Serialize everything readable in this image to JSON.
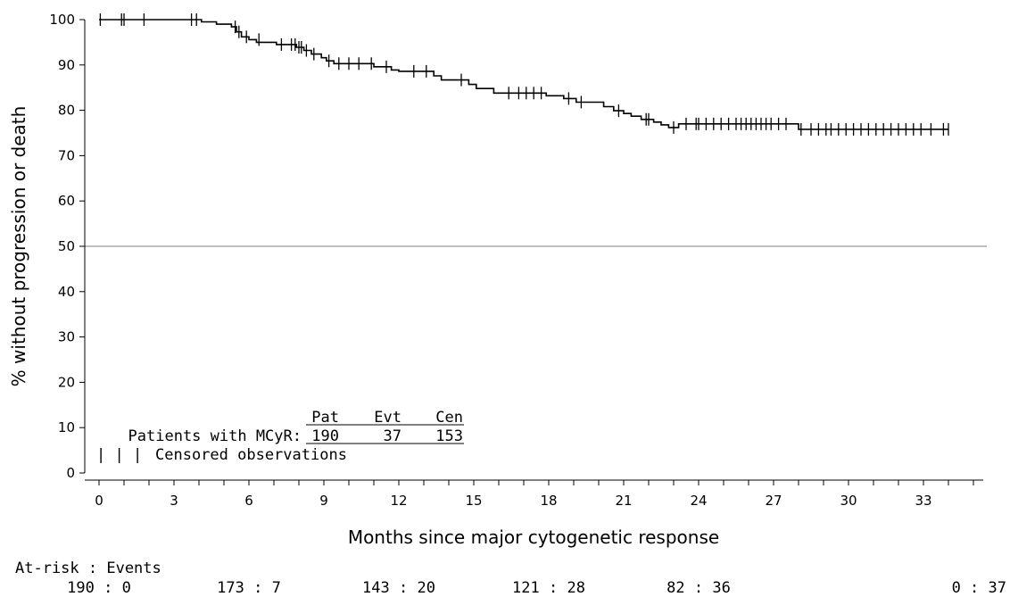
{
  "chart_data": {
    "type": "line",
    "subtype": "kaplan-meier",
    "xlabel": "Months since major cytogenetic response",
    "ylabel": "% without progression or death",
    "xlim": [
      0,
      34.5
    ],
    "ylim": [
      0,
      100
    ],
    "xticks": [
      0,
      3,
      6,
      9,
      12,
      15,
      18,
      21,
      24,
      27,
      30,
      33
    ],
    "yticks": [
      0,
      10,
      20,
      30,
      40,
      50,
      60,
      70,
      80,
      90,
      100
    ],
    "reference_line": 50,
    "colors": {
      "curve": "#000000",
      "reference": "#999999"
    },
    "series": [
      {
        "name": "Patients with MCyR",
        "steps": [
          [
            0,
            100
          ],
          [
            4.1,
            99.5
          ],
          [
            4.7,
            99.0
          ],
          [
            5.3,
            98.4
          ],
          [
            5.5,
            97.3
          ],
          [
            5.7,
            96.2
          ],
          [
            6.0,
            95.6
          ],
          [
            6.3,
            95.0
          ],
          [
            7.1,
            94.5
          ],
          [
            7.9,
            93.9
          ],
          [
            8.2,
            93.2
          ],
          [
            8.5,
            92.4
          ],
          [
            8.9,
            91.6
          ],
          [
            9.1,
            90.9
          ],
          [
            9.4,
            90.3
          ],
          [
            11.0,
            89.6
          ],
          [
            11.7,
            88.9
          ],
          [
            12.0,
            88.6
          ],
          [
            13.4,
            87.6
          ],
          [
            13.7,
            86.7
          ],
          [
            14.8,
            85.7
          ],
          [
            15.1,
            84.8
          ],
          [
            15.8,
            83.8
          ],
          [
            17.9,
            83.2
          ],
          [
            18.6,
            82.6
          ],
          [
            19.1,
            81.8
          ],
          [
            20.2,
            80.8
          ],
          [
            20.6,
            79.9
          ],
          [
            21.0,
            79.3
          ],
          [
            21.3,
            78.7
          ],
          [
            21.7,
            78.0
          ],
          [
            22.2,
            77.4
          ],
          [
            22.5,
            76.8
          ],
          [
            22.8,
            76.2
          ],
          [
            23.2,
            77.0
          ],
          [
            28.0,
            75.8
          ],
          [
            34.0,
            75.8
          ]
        ],
        "censored": [
          [
            0.05,
            100
          ],
          [
            0.9,
            100
          ],
          [
            1.0,
            100
          ],
          [
            1.8,
            100
          ],
          [
            3.7,
            100
          ],
          [
            3.9,
            100
          ],
          [
            5.45,
            98.4
          ],
          [
            5.6,
            97.3
          ],
          [
            5.9,
            96.2
          ],
          [
            6.4,
            95.6
          ],
          [
            7.3,
            94.5
          ],
          [
            7.7,
            94.5
          ],
          [
            7.85,
            94.5
          ],
          [
            8.0,
            93.9
          ],
          [
            8.1,
            93.9
          ],
          [
            8.3,
            93.2
          ],
          [
            8.6,
            92.4
          ],
          [
            9.2,
            90.9
          ],
          [
            9.6,
            90.3
          ],
          [
            10.0,
            90.3
          ],
          [
            10.4,
            90.3
          ],
          [
            10.9,
            90.3
          ],
          [
            11.5,
            89.6
          ],
          [
            12.6,
            88.6
          ],
          [
            13.1,
            88.6
          ],
          [
            14.5,
            86.7
          ],
          [
            16.4,
            83.8
          ],
          [
            16.8,
            83.8
          ],
          [
            17.1,
            83.8
          ],
          [
            17.4,
            83.8
          ],
          [
            17.7,
            83.8
          ],
          [
            18.8,
            82.6
          ],
          [
            19.3,
            81.8
          ],
          [
            20.8,
            79.9
          ],
          [
            21.9,
            78.0
          ],
          [
            22.0,
            78.0
          ],
          [
            23.0,
            76.2
          ],
          [
            23.5,
            77.0
          ],
          [
            23.9,
            77.0
          ],
          [
            24.0,
            77.0
          ],
          [
            24.3,
            77.0
          ],
          [
            24.6,
            77.0
          ],
          [
            24.9,
            77.0
          ],
          [
            25.2,
            77.0
          ],
          [
            25.5,
            77.0
          ],
          [
            25.7,
            77.0
          ],
          [
            25.9,
            77.0
          ],
          [
            26.1,
            77.0
          ],
          [
            26.3,
            77.0
          ],
          [
            26.5,
            77.0
          ],
          [
            26.7,
            77.0
          ],
          [
            26.9,
            77.0
          ],
          [
            27.2,
            77.0
          ],
          [
            27.5,
            77.0
          ],
          [
            28.1,
            75.8
          ],
          [
            28.5,
            75.8
          ],
          [
            28.8,
            75.8
          ],
          [
            29.1,
            75.8
          ],
          [
            29.3,
            75.8
          ],
          [
            29.6,
            75.8
          ],
          [
            29.9,
            75.8
          ],
          [
            30.2,
            75.8
          ],
          [
            30.5,
            75.8
          ],
          [
            30.8,
            75.8
          ],
          [
            31.1,
            75.8
          ],
          [
            31.4,
            75.8
          ],
          [
            31.7,
            75.8
          ],
          [
            32.0,
            75.8
          ],
          [
            32.3,
            75.8
          ],
          [
            32.6,
            75.8
          ],
          [
            32.9,
            75.8
          ],
          [
            33.3,
            75.8
          ],
          [
            33.8,
            75.8
          ],
          [
            34.0,
            75.8
          ]
        ]
      }
    ],
    "legend_table": {
      "headers": [
        "Pat",
        "Evt",
        "Cen"
      ],
      "row_label": "Patients with MCyR:",
      "values": [
        "190",
        "37",
        "153"
      ],
      "censor_symbol": "| | |",
      "censor_label": "Censored observations"
    },
    "at_risk": {
      "title": "At-risk : Events",
      "entries": [
        {
          "month": 0,
          "text": "190 : 0"
        },
        {
          "month": 6,
          "text": "173 : 7"
        },
        {
          "month": 12,
          "text": "143 : 20"
        },
        {
          "month": 18,
          "text": "121 : 28"
        },
        {
          "month": 24,
          "text": "82 : 36"
        },
        {
          "month": 36,
          "text": "0 : 37"
        }
      ]
    }
  }
}
